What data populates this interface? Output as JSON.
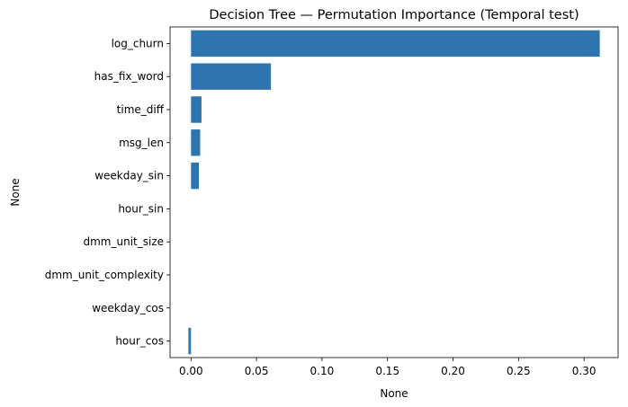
{
  "chart_data": {
    "type": "bar",
    "orientation": "horizontal",
    "title": "Decision Tree — Permutation Importance (Temporal test)",
    "xlabel": "None",
    "ylabel": "None",
    "xlim": [
      -0.016,
      0.326
    ],
    "xticks": [
      0.0,
      0.05,
      0.1,
      0.15,
      0.2,
      0.25,
      0.3
    ],
    "xtick_labels": [
      "0.00",
      "0.05",
      "0.10",
      "0.15",
      "0.20",
      "0.25",
      "0.30"
    ],
    "categories": [
      "log_churn",
      "has_fix_word",
      "time_diff",
      "msg_len",
      "weekday_sin",
      "hour_sin",
      "dmm_unit_size",
      "dmm_unit_complexity",
      "weekday_cos",
      "hour_cos"
    ],
    "values": [
      0.312,
      0.061,
      0.008,
      0.007,
      0.006,
      0.0,
      0.0,
      0.0,
      0.0,
      -0.002
    ],
    "bar_color": "#2e74ae",
    "grid": false,
    "legend": "none"
  }
}
